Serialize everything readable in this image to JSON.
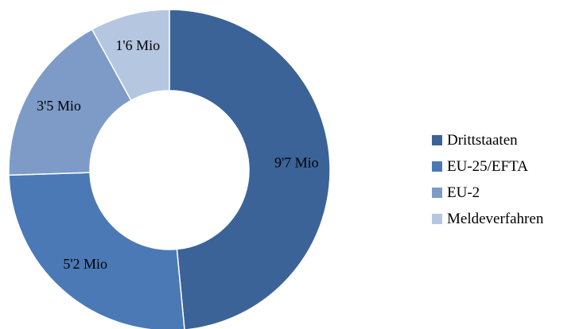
{
  "chart_data": {
    "type": "pie",
    "title": "",
    "legend_position": "right",
    "categories": [
      "Drittstaaten",
      "EU-25/EFTA",
      "EU-2",
      "Meldeverfahren"
    ],
    "values": [
      9.7,
      5.2,
      3.5,
      1.6
    ],
    "data_labels": [
      "9'7 Mio",
      "5'2 Mio",
      "3'5 Mio",
      "1'6 Mio"
    ],
    "colors": [
      "#3B6397",
      "#4B79B6",
      "#7E9BC8",
      "#B5C6E0"
    ]
  }
}
